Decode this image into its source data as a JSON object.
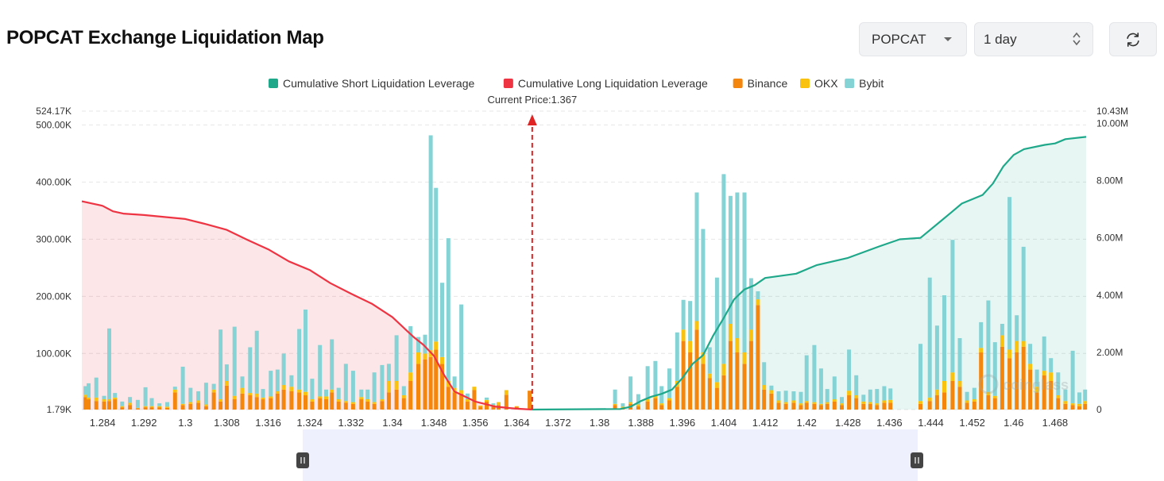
{
  "page": {
    "title": "POPCAT Exchange Liquidation Map",
    "coin_select": {
      "value": "POPCAT",
      "icon": "caret-down-icon"
    },
    "range_select": {
      "value": "1 day",
      "icon": "up-down-arrows-icon"
    },
    "refresh_icon": "refresh-icon",
    "watermark": "coinglass"
  },
  "chart_data": {
    "type": "bar",
    "legend": [
      {
        "name": "Cumulative Short Liquidation Leverage",
        "color": "#1fa88a"
      },
      {
        "name": "Cumulative Long Liquidation Leverage",
        "color": "#ee3443"
      },
      {
        "name": "Binance",
        "color": "#f4860e"
      },
      {
        "name": "OKX",
        "color": "#f9c20e"
      },
      {
        "name": "Bybit",
        "color": "#86d3d5"
      }
    ],
    "legend_position": "top-center",
    "current_price_label": "Current Price:1.367",
    "current_price": 1.367,
    "x_range": [
      1.28,
      1.474
    ],
    "x_ticks": [
      "1.284",
      "1.292",
      "1.3",
      "1.308",
      "1.316",
      "1.324",
      "1.332",
      "1.34",
      "1.348",
      "1.356",
      "1.364",
      "1.372",
      "1.38",
      "1.388",
      "1.396",
      "1.404",
      "1.412",
      "1.42",
      "1.428",
      "1.436",
      "1.444",
      "1.452",
      "1.46",
      "1.468"
    ],
    "y_left": {
      "min": 1790,
      "max": 524170,
      "ticks": [
        "524.17K",
        "500.00K",
        "400.00K",
        "300.00K",
        "200.00K",
        "100.00K",
        "1.79K"
      ]
    },
    "y_right": {
      "min": 0,
      "max": 10430000,
      "ticks": [
        "10.43M",
        "10.00M",
        "8.00M",
        "6.00M",
        "4.00M",
        "2.00M",
        "0"
      ]
    },
    "grid": true,
    "long_cumulative": [
      [
        1.28,
        7.28
      ],
      [
        1.282,
        7.2
      ],
      [
        1.284,
        7.12
      ],
      [
        1.286,
        6.93
      ],
      [
        1.288,
        6.85
      ],
      [
        1.292,
        6.8
      ],
      [
        1.296,
        6.73
      ],
      [
        1.3,
        6.66
      ],
      [
        1.304,
        6.48
      ],
      [
        1.308,
        6.28
      ],
      [
        1.312,
        5.93
      ],
      [
        1.316,
        5.6
      ],
      [
        1.32,
        5.18
      ],
      [
        1.324,
        4.88
      ],
      [
        1.328,
        4.42
      ],
      [
        1.332,
        4.05
      ],
      [
        1.336,
        3.7
      ],
      [
        1.34,
        3.23
      ],
      [
        1.344,
        2.55
      ],
      [
        1.346,
        2.26
      ],
      [
        1.348,
        1.88
      ],
      [
        1.35,
        1.2
      ],
      [
        1.352,
        0.63
      ],
      [
        1.356,
        0.28
      ],
      [
        1.36,
        0.1
      ],
      [
        1.364,
        0.03
      ],
      [
        1.367,
        0
      ]
    ],
    "short_cumulative": [
      [
        1.367,
        0
      ],
      [
        1.384,
        0.02
      ],
      [
        1.386,
        0.1
      ],
      [
        1.388,
        0.3
      ],
      [
        1.39,
        0.45
      ],
      [
        1.392,
        0.55
      ],
      [
        1.394,
        0.7
      ],
      [
        1.396,
        1.1
      ],
      [
        1.398,
        1.6
      ],
      [
        1.4,
        1.9
      ],
      [
        1.402,
        2.6
      ],
      [
        1.404,
        3.2
      ],
      [
        1.406,
        3.85
      ],
      [
        1.408,
        4.2
      ],
      [
        1.41,
        4.35
      ],
      [
        1.412,
        4.6
      ],
      [
        1.418,
        4.75
      ],
      [
        1.422,
        5.05
      ],
      [
        1.428,
        5.3
      ],
      [
        1.434,
        5.7
      ],
      [
        1.438,
        5.95
      ],
      [
        1.442,
        6.0
      ],
      [
        1.446,
        6.6
      ],
      [
        1.448,
        6.9
      ],
      [
        1.45,
        7.2
      ],
      [
        1.454,
        7.5
      ],
      [
        1.456,
        7.9
      ],
      [
        1.458,
        8.5
      ],
      [
        1.46,
        8.9
      ],
      [
        1.462,
        9.1
      ],
      [
        1.466,
        9.25
      ],
      [
        1.468,
        9.3
      ],
      [
        1.47,
        9.45
      ],
      [
        1.474,
        9.53
      ]
    ],
    "bars": [
      {
        "x": 1.2807,
        "binance": 22000,
        "okx": 4000,
        "bybit": 15000
      },
      {
        "x": 1.2813,
        "binance": 18000,
        "okx": 3000,
        "bybit": 25000
      },
      {
        "x": 1.2828,
        "binance": 15000,
        "okx": 6000,
        "bybit": 35000
      },
      {
        "x": 1.2843,
        "binance": 14000,
        "okx": 4000,
        "bybit": 6000
      },
      {
        "x": 1.2853,
        "binance": 15000,
        "okx": 3000,
        "bybit": 124000
      },
      {
        "x": 1.2864,
        "binance": 18000,
        "okx": 3000,
        "bybit": 8000
      },
      {
        "x": 1.2878,
        "binance": 4000,
        "okx": 2000,
        "bybit": 8000
      },
      {
        "x": 1.2893,
        "binance": 8000,
        "okx": 4000,
        "bybit": 10000
      },
      {
        "x": 1.2908,
        "binance": 2000,
        "okx": 1000,
        "bybit": 14000
      },
      {
        "x": 1.2923,
        "binance": 4000,
        "okx": 2000,
        "bybit": 33000
      },
      {
        "x": 1.2935,
        "binance": 4000,
        "okx": 2000,
        "bybit": 14000
      },
      {
        "x": 1.295,
        "binance": 4000,
        "okx": 2000,
        "bybit": 5000
      },
      {
        "x": 1.2965,
        "binance": 3000,
        "okx": 2000,
        "bybit": 8000
      },
      {
        "x": 1.298,
        "binance": 30000,
        "okx": 5000,
        "bybit": 5000
      },
      {
        "x": 1.2995,
        "binance": 8000,
        "okx": 2000,
        "bybit": 65000
      },
      {
        "x": 1.301,
        "binance": 10000,
        "okx": 3000,
        "bybit": 25000
      },
      {
        "x": 1.3025,
        "binance": 12000,
        "okx": 4000,
        "bybit": 16000
      },
      {
        "x": 1.304,
        "binance": 6000,
        "okx": 3000,
        "bybit": 38000
      },
      {
        "x": 1.3055,
        "binance": 30000,
        "okx": 5000,
        "bybit": 10000
      },
      {
        "x": 1.3068,
        "binance": 14000,
        "okx": 4000,
        "bybit": 122000
      },
      {
        "x": 1.308,
        "binance": 42000,
        "okx": 8000,
        "bybit": 29000
      },
      {
        "x": 1.3095,
        "binance": 18000,
        "okx": 6000,
        "bybit": 121000
      },
      {
        "x": 1.311,
        "binance": 28000,
        "okx": 10000,
        "bybit": 20000
      },
      {
        "x": 1.3125,
        "binance": 25000,
        "okx": 4000,
        "bybit": 80000
      },
      {
        "x": 1.3138,
        "binance": 22000,
        "okx": 6000,
        "bybit": 110000
      },
      {
        "x": 1.315,
        "binance": 18000,
        "okx": 3000,
        "bybit": 15000
      },
      {
        "x": 1.3165,
        "binance": 20000,
        "okx": 3000,
        "bybit": 45000
      },
      {
        "x": 1.3178,
        "binance": 28000,
        "okx": 4000,
        "bybit": 38000
      },
      {
        "x": 1.319,
        "binance": 35000,
        "okx": 8000,
        "bybit": 55000
      },
      {
        "x": 1.3205,
        "binance": 32000,
        "okx": 8000,
        "bybit": 20000
      },
      {
        "x": 1.322,
        "binance": 30000,
        "okx": 5000,
        "bybit": 106000
      },
      {
        "x": 1.3232,
        "binance": 25000,
        "okx": 6000,
        "bybit": 144000
      },
      {
        "x": 1.3245,
        "binance": 14000,
        "okx": 4000,
        "bybit": 36000
      },
      {
        "x": 1.326,
        "binance": 20000,
        "okx": 3000,
        "bybit": 90000
      },
      {
        "x": 1.3272,
        "binance": 18000,
        "okx": 5000,
        "bybit": 12000
      },
      {
        "x": 1.3283,
        "binance": 30000,
        "okx": 5000,
        "bybit": 88000
      },
      {
        "x": 1.3296,
        "binance": 14000,
        "okx": 4000,
        "bybit": 20000
      },
      {
        "x": 1.331,
        "binance": 12000,
        "okx": 3000,
        "bybit": 65000
      },
      {
        "x": 1.3324,
        "binance": 10000,
        "okx": 3000,
        "bybit": 55000
      },
      {
        "x": 1.334,
        "binance": 18000,
        "okx": 4000,
        "bybit": 13000
      },
      {
        "x": 1.3352,
        "binance": 14000,
        "okx": 4000,
        "bybit": 17000
      },
      {
        "x": 1.3365,
        "binance": 10000,
        "okx": 3000,
        "bybit": 52000
      },
      {
        "x": 1.338,
        "binance": 15000,
        "okx": 3000,
        "bybit": 60000
      },
      {
        "x": 1.3393,
        "binance": 30000,
        "okx": 20000,
        "bybit": 30000
      },
      {
        "x": 1.3408,
        "binance": 35000,
        "okx": 15000,
        "bybit": 80000
      },
      {
        "x": 1.3422,
        "binance": 20000,
        "okx": 5000,
        "bybit": 16000
      },
      {
        "x": 1.3435,
        "binance": 50000,
        "okx": 15000,
        "bybit": 81000
      },
      {
        "x": 1.345,
        "binance": 80000,
        "okx": 20000,
        "bybit": 27000
      },
      {
        "x": 1.3463,
        "binance": 88000,
        "okx": 10000,
        "bybit": 33000
      },
      {
        "x": 1.3474,
        "binance": 92000,
        "okx": 12000,
        "bybit": 376000
      },
      {
        "x": 1.3484,
        "binance": 105000,
        "okx": 14000,
        "bybit": 269000
      },
      {
        "x": 1.3496,
        "binance": 80000,
        "okx": 12000,
        "bybit": 130000
      },
      {
        "x": 1.3508,
        "binance": 40000,
        "okx": 10000,
        "bybit": 250000
      },
      {
        "x": 1.352,
        "binance": 30000,
        "okx": 8000,
        "bybit": 20000
      },
      {
        "x": 1.3533,
        "binance": 28000,
        "okx": 6000,
        "bybit": 150000
      },
      {
        "x": 1.3545,
        "binance": 14000,
        "okx": 4000,
        "bybit": 10000
      },
      {
        "x": 1.3558,
        "binance": 34000,
        "okx": 6000,
        "bybit": 0
      },
      {
        "x": 1.357,
        "binance": 5000,
        "okx": 2000,
        "bybit": 0
      },
      {
        "x": 1.3582,
        "binance": 14000,
        "okx": 3000,
        "bybit": 4000
      },
      {
        "x": 1.3595,
        "binance": 6000,
        "okx": 2000,
        "bybit": 3000
      },
      {
        "x": 1.3605,
        "binance": 8000,
        "okx": 5000,
        "bybit": 0
      },
      {
        "x": 1.362,
        "binance": 26000,
        "okx": 8000,
        "bybit": 0
      },
      {
        "x": 1.364,
        "binance": 5000,
        "okx": 1000,
        "bybit": 0
      },
      {
        "x": 1.3665,
        "binance": 33000,
        "okx": 0,
        "bybit": 0
      },
      {
        "x": 1.383,
        "binance": 8000,
        "okx": 2000,
        "bybit": 25000
      },
      {
        "x": 1.3845,
        "binance": 3000,
        "okx": 2000,
        "bybit": 6000
      },
      {
        "x": 1.386,
        "binance": 10000,
        "okx": 3000,
        "bybit": 45000
      },
      {
        "x": 1.3875,
        "binance": 6000,
        "okx": 3000,
        "bybit": 18000
      },
      {
        "x": 1.3893,
        "binance": 14000,
        "okx": 4000,
        "bybit": 58000
      },
      {
        "x": 1.3908,
        "binance": 20000,
        "okx": 5000,
        "bybit": 60000
      },
      {
        "x": 1.392,
        "binance": 8000,
        "okx": 3000,
        "bybit": 30000
      },
      {
        "x": 1.3935,
        "binance": 16000,
        "okx": 4000,
        "bybit": 52000
      },
      {
        "x": 1.395,
        "binance": 40000,
        "okx": 10000,
        "bybit": 85000
      },
      {
        "x": 1.3962,
        "binance": 120000,
        "okx": 20000,
        "bybit": 52000
      },
      {
        "x": 1.3975,
        "binance": 100000,
        "okx": 20000,
        "bybit": 70000
      },
      {
        "x": 1.3988,
        "binance": 140000,
        "okx": 15000,
        "bybit": 225000
      },
      {
        "x": 1.4,
        "binance": 80000,
        "okx": 20000,
        "bybit": 216000
      },
      {
        "x": 1.4013,
        "binance": 55000,
        "okx": 8000,
        "bybit": 46000
      },
      {
        "x": 1.4027,
        "binance": 38000,
        "okx": 10000,
        "bybit": 183000
      },
      {
        "x": 1.404,
        "binance": 60000,
        "okx": 20000,
        "bybit": 332000
      },
      {
        "x": 1.4053,
        "binance": 120000,
        "okx": 30000,
        "bybit": 224000
      },
      {
        "x": 1.4066,
        "binance": 100000,
        "okx": 25000,
        "bybit": 255000
      },
      {
        "x": 1.408,
        "binance": 80000,
        "okx": 20000,
        "bybit": 280000
      },
      {
        "x": 1.4093,
        "binance": 120000,
        "okx": 20000,
        "bybit": 90000
      },
      {
        "x": 1.4106,
        "binance": 183000,
        "okx": 10000,
        "bybit": 14000
      },
      {
        "x": 1.4118,
        "binance": 35000,
        "okx": 8000,
        "bybit": 40000
      },
      {
        "x": 1.4132,
        "binance": 28000,
        "okx": 6000,
        "bybit": 8000
      },
      {
        "x": 1.4146,
        "binance": 12000,
        "okx": 4000,
        "bybit": 16000
      },
      {
        "x": 1.416,
        "binance": 10000,
        "okx": 3000,
        "bybit": 20000
      },
      {
        "x": 1.4175,
        "binance": 12000,
        "okx": 4000,
        "bybit": 16000
      },
      {
        "x": 1.4189,
        "binance": 8000,
        "okx": 3000,
        "bybit": 20000
      },
      {
        "x": 1.42,
        "binance": 12000,
        "okx": 3000,
        "bybit": 80000
      },
      {
        "x": 1.4215,
        "binance": 10000,
        "okx": 3000,
        "bybit": 100000
      },
      {
        "x": 1.4228,
        "binance": 8000,
        "okx": 2000,
        "bybit": 62000
      },
      {
        "x": 1.424,
        "binance": 10000,
        "okx": 3000,
        "bybit": 23000
      },
      {
        "x": 1.4254,
        "binance": 14000,
        "okx": 4000,
        "bybit": 40000
      },
      {
        "x": 1.4268,
        "binance": 8000,
        "okx": 3000,
        "bybit": 11000
      },
      {
        "x": 1.4282,
        "binance": 25000,
        "okx": 8000,
        "bybit": 72000
      },
      {
        "x": 1.4296,
        "binance": 20000,
        "okx": 5000,
        "bybit": 35000
      },
      {
        "x": 1.431,
        "binance": 10000,
        "okx": 4000,
        "bybit": 12000
      },
      {
        "x": 1.4323,
        "binance": 10000,
        "okx": 3000,
        "bybit": 22000
      },
      {
        "x": 1.4336,
        "binance": 8000,
        "okx": 3000,
        "bybit": 25000
      },
      {
        "x": 1.435,
        "binance": 12000,
        "okx": 4000,
        "bybit": 25000
      },
      {
        "x": 1.4362,
        "binance": 12000,
        "okx": 5000,
        "bybit": 20000
      },
      {
        "x": 1.442,
        "binance": 10000,
        "okx": 5000,
        "bybit": 100000
      },
      {
        "x": 1.4438,
        "binance": 15000,
        "okx": 6000,
        "bybit": 210000
      },
      {
        "x": 1.4452,
        "binance": 25000,
        "okx": 10000,
        "bybit": 112000
      },
      {
        "x": 1.4466,
        "binance": 30000,
        "okx": 20000,
        "bybit": 150000
      },
      {
        "x": 1.4482,
        "binance": 50000,
        "okx": 15000,
        "bybit": 232000
      },
      {
        "x": 1.4496,
        "binance": 40000,
        "okx": 10000,
        "bybit": 75000
      },
      {
        "x": 1.451,
        "binance": 12000,
        "okx": 4000,
        "bybit": 15000
      },
      {
        "x": 1.4524,
        "binance": 14000,
        "okx": 4000,
        "bybit": 20000
      },
      {
        "x": 1.4537,
        "binance": 100000,
        "okx": 8000,
        "bybit": 45000
      },
      {
        "x": 1.4551,
        "binance": 25000,
        "okx": 6000,
        "bybit": 160000
      },
      {
        "x": 1.4564,
        "binance": 20000,
        "okx": 4000,
        "bybit": 94000
      },
      {
        "x": 1.4578,
        "binance": 110000,
        "okx": 20000,
        "bybit": 20000
      },
      {
        "x": 1.4592,
        "binance": 90000,
        "okx": 15000,
        "bybit": 267000
      },
      {
        "x": 1.4606,
        "binance": 100000,
        "okx": 20000,
        "bybit": 45000
      },
      {
        "x": 1.4619,
        "binance": 110000,
        "okx": 10000,
        "bybit": 165000
      },
      {
        "x": 1.4632,
        "binance": 70000,
        "okx": 10000,
        "bybit": 35000
      },
      {
        "x": 1.4645,
        "binance": 30000,
        "okx": 10000,
        "bybit": 30000
      },
      {
        "x": 1.4659,
        "binance": 60000,
        "okx": 8000,
        "bybit": 60000
      },
      {
        "x": 1.4672,
        "binance": 50000,
        "okx": 15000,
        "bybit": 25000
      },
      {
        "x": 1.4686,
        "binance": 20000,
        "okx": 5000,
        "bybit": 40000
      },
      {
        "x": 1.47,
        "binance": 10000,
        "okx": 5000,
        "bybit": 20000
      },
      {
        "x": 1.4714,
        "binance": 8000,
        "okx": 3000,
        "bybit": 92000
      },
      {
        "x": 1.4727,
        "binance": 6000,
        "okx": 4000,
        "bybit": 20000
      },
      {
        "x": 1.4738,
        "binance": 10000,
        "okx": 5000,
        "bybit": 20000
      }
    ]
  }
}
